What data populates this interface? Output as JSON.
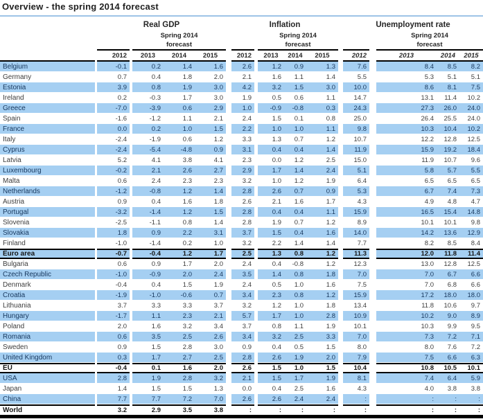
{
  "title": "Overview - the spring 2014 forecast",
  "colors": {
    "row_highlight": "#A5CFF2",
    "title_rule_blue": "#9DC3E6",
    "table_rule_black": "#000000"
  },
  "table": {
    "groups": [
      {
        "label": "Real GDP",
        "sub_line1": "Spring 2014",
        "sub_line2": "forecast",
        "years": [
          "2012",
          "2013",
          "2014",
          "2015"
        ],
        "italic_years": false
      },
      {
        "label": "Inflation",
        "sub_line1": "Spring 2014",
        "sub_line2": "forecast",
        "years": [
          "2012",
          "2013",
          "2014",
          "2015"
        ],
        "italic_years": false
      },
      {
        "label": "Unemployment rate",
        "sub_line1": "Spring 2014",
        "sub_line2": "forecast",
        "years": [
          "2012",
          "2013",
          "2014",
          "2015"
        ],
        "italic_years": true
      }
    ],
    "rows": [
      {
        "name": "Belgium",
        "gdp": [
          "-0.1",
          "0.2",
          "1.4",
          "1.6"
        ],
        "inflation": [
          "2.6",
          "1.2",
          "0.9",
          "1.3"
        ],
        "unemployment": [
          "7.6",
          "8.4",
          "8.5",
          "8.2"
        ]
      },
      {
        "name": "Germany",
        "gdp": [
          "0.7",
          "0.4",
          "1.8",
          "2.0"
        ],
        "inflation": [
          "2.1",
          "1.6",
          "1.1",
          "1.4"
        ],
        "unemployment": [
          "5.5",
          "5.3",
          "5.1",
          "5.1"
        ]
      },
      {
        "name": "Estonia",
        "gdp": [
          "3.9",
          "0.8",
          "1.9",
          "3.0"
        ],
        "inflation": [
          "4.2",
          "3.2",
          "1.5",
          "3.0"
        ],
        "unemployment": [
          "10.0",
          "8.6",
          "8.1",
          "7.5"
        ]
      },
      {
        "name": "Ireland",
        "gdp": [
          "0.2",
          "-0.3",
          "1.7",
          "3.0"
        ],
        "inflation": [
          "1.9",
          "0.5",
          "0.6",
          "1.1"
        ],
        "unemployment": [
          "14.7",
          "13.1",
          "11.4",
          "10.2"
        ]
      },
      {
        "name": "Greece",
        "gdp": [
          "-7.0",
          "-3.9",
          "0.6",
          "2.9"
        ],
        "inflation": [
          "1.0",
          "-0.9",
          "-0.8",
          "0.3"
        ],
        "unemployment": [
          "24.3",
          "27.3",
          "26.0",
          "24.0"
        ]
      },
      {
        "name": "Spain",
        "gdp": [
          "-1.6",
          "-1.2",
          "1.1",
          "2.1"
        ],
        "inflation": [
          "2.4",
          "1.5",
          "0.1",
          "0.8"
        ],
        "unemployment": [
          "25.0",
          "26.4",
          "25.5",
          "24.0"
        ]
      },
      {
        "name": "France",
        "gdp": [
          "0.0",
          "0.2",
          "1.0",
          "1.5"
        ],
        "inflation": [
          "2.2",
          "1.0",
          "1.0",
          "1.1"
        ],
        "unemployment": [
          "9.8",
          "10.3",
          "10.4",
          "10.2"
        ]
      },
      {
        "name": "Italy",
        "gdp": [
          "-2.4",
          "-1.9",
          "0.6",
          "1.2"
        ],
        "inflation": [
          "3.3",
          "1.3",
          "0.7",
          "1.2"
        ],
        "unemployment": [
          "10.7",
          "12.2",
          "12.8",
          "12.5"
        ]
      },
      {
        "name": "Cyprus",
        "gdp": [
          "-2.4",
          "-5.4",
          "-4.8",
          "0.9"
        ],
        "inflation": [
          "3.1",
          "0.4",
          "0.4",
          "1.4"
        ],
        "unemployment": [
          "11.9",
          "15.9",
          "19.2",
          "18.4"
        ]
      },
      {
        "name": "Latvia",
        "gdp": [
          "5.2",
          "4.1",
          "3.8",
          "4.1"
        ],
        "inflation": [
          "2.3",
          "0.0",
          "1.2",
          "2.5"
        ],
        "unemployment": [
          "15.0",
          "11.9",
          "10.7",
          "9.6"
        ]
      },
      {
        "name": "Luxembourg",
        "gdp": [
          "-0.2",
          "2.1",
          "2.6",
          "2.7"
        ],
        "inflation": [
          "2.9",
          "1.7",
          "1.4",
          "2.4"
        ],
        "unemployment": [
          "5.1",
          "5.8",
          "5.7",
          "5.5"
        ]
      },
      {
        "name": "Malta",
        "gdp": [
          "0.6",
          "2.4",
          "2.3",
          "2.3"
        ],
        "inflation": [
          "3.2",
          "1.0",
          "1.2",
          "1.9"
        ],
        "unemployment": [
          "6.4",
          "6.5",
          "6.5",
          "6.5"
        ]
      },
      {
        "name": "Netherlands",
        "gdp": [
          "-1.2",
          "-0.8",
          "1.2",
          "1.4"
        ],
        "inflation": [
          "2.8",
          "2.6",
          "0.7",
          "0.9"
        ],
        "unemployment": [
          "5.3",
          "6.7",
          "7.4",
          "7.3"
        ]
      },
      {
        "name": "Austria",
        "gdp": [
          "0.9",
          "0.4",
          "1.6",
          "1.8"
        ],
        "inflation": [
          "2.6",
          "2.1",
          "1.6",
          "1.7"
        ],
        "unemployment": [
          "4.3",
          "4.9",
          "4.8",
          "4.7"
        ]
      },
      {
        "name": "Portugal",
        "gdp": [
          "-3.2",
          "-1.4",
          "1.2",
          "1.5"
        ],
        "inflation": [
          "2.8",
          "0.4",
          "0.4",
          "1.1"
        ],
        "unemployment": [
          "15.9",
          "16.5",
          "15.4",
          "14.8"
        ]
      },
      {
        "name": "Slovenia",
        "gdp": [
          "-2.5",
          "-1.1",
          "0.8",
          "1.4"
        ],
        "inflation": [
          "2.8",
          "1.9",
          "0.7",
          "1.2"
        ],
        "unemployment": [
          "8.9",
          "10.1",
          "10.1",
          "9.8"
        ]
      },
      {
        "name": "Slovakia",
        "gdp": [
          "1.8",
          "0.9",
          "2.2",
          "3.1"
        ],
        "inflation": [
          "3.7",
          "1.5",
          "0.4",
          "1.6"
        ],
        "unemployment": [
          "14.0",
          "14.2",
          "13.6",
          "12.9"
        ]
      },
      {
        "name": "Finland",
        "gdp": [
          "-1.0",
          "-1.4",
          "0.2",
          "1.0"
        ],
        "inflation": [
          "3.2",
          "2.2",
          "1.4",
          "1.4"
        ],
        "unemployment": [
          "7.7",
          "8.2",
          "8.5",
          "8.4"
        ]
      },
      {
        "name": "Euro area",
        "bold": true,
        "gdp": [
          "-0.7",
          "-0.4",
          "1.2",
          "1.7"
        ],
        "inflation": [
          "2.5",
          "1.3",
          "0.8",
          "1.2"
        ],
        "unemployment": [
          "11.3",
          "12.0",
          "11.8",
          "11.4"
        ]
      },
      {
        "name": "Bulgaria",
        "gdp": [
          "0.6",
          "0.9",
          "1.7",
          "2.0"
        ],
        "inflation": [
          "2.4",
          "0.4",
          "-0.8",
          "1.2"
        ],
        "unemployment": [
          "12.3",
          "13.0",
          "12.8",
          "12.5"
        ]
      },
      {
        "name": "Czech Republic",
        "gdp": [
          "-1.0",
          "-0.9",
          "2.0",
          "2.4"
        ],
        "inflation": [
          "3.5",
          "1.4",
          "0.8",
          "1.8"
        ],
        "unemployment": [
          "7.0",
          "7.0",
          "6.7",
          "6.6"
        ]
      },
      {
        "name": "Denmark",
        "gdp": [
          "-0.4",
          "0.4",
          "1.5",
          "1.9"
        ],
        "inflation": [
          "2.4",
          "0.5",
          "1.0",
          "1.6"
        ],
        "unemployment": [
          "7.5",
          "7.0",
          "6.8",
          "6.6"
        ]
      },
      {
        "name": "Croatia",
        "gdp": [
          "-1.9",
          "-1.0",
          "-0.6",
          "0.7"
        ],
        "inflation": [
          "3.4",
          "2.3",
          "0.8",
          "1.2"
        ],
        "unemployment": [
          "15.9",
          "17.2",
          "18.0",
          "18.0"
        ]
      },
      {
        "name": "Lithuania",
        "gdp": [
          "3.7",
          "3.3",
          "3.3",
          "3.7"
        ],
        "inflation": [
          "3.2",
          "1.2",
          "1.0",
          "1.8"
        ],
        "unemployment": [
          "13.4",
          "11.8",
          "10.6",
          "9.7"
        ]
      },
      {
        "name": "Hungary",
        "gdp": [
          "-1.7",
          "1.1",
          "2.3",
          "2.1"
        ],
        "inflation": [
          "5.7",
          "1.7",
          "1.0",
          "2.8"
        ],
        "unemployment": [
          "10.9",
          "10.2",
          "9.0",
          "8.9"
        ]
      },
      {
        "name": "Poland",
        "gdp": [
          "2.0",
          "1.6",
          "3.2",
          "3.4"
        ],
        "inflation": [
          "3.7",
          "0.8",
          "1.1",
          "1.9"
        ],
        "unemployment": [
          "10.1",
          "10.3",
          "9.9",
          "9.5"
        ]
      },
      {
        "name": "Romania",
        "gdp": [
          "0.6",
          "3.5",
          "2.5",
          "2.6"
        ],
        "inflation": [
          "3.4",
          "3.2",
          "2.5",
          "3.3"
        ],
        "unemployment": [
          "7.0",
          "7.3",
          "7.2",
          "7.1"
        ]
      },
      {
        "name": "Sweden",
        "gdp": [
          "0.9",
          "1.5",
          "2.8",
          "3.0"
        ],
        "inflation": [
          "0.9",
          "0.4",
          "0.5",
          "1.5"
        ],
        "unemployment": [
          "8.0",
          "8.0",
          "7.6",
          "7.2"
        ]
      },
      {
        "name": "United Kingdom",
        "gdp": [
          "0.3",
          "1.7",
          "2.7",
          "2.5"
        ],
        "inflation": [
          "2.8",
          "2.6",
          "1.9",
          "2.0"
        ],
        "unemployment": [
          "7.9",
          "7.5",
          "6.6",
          "6.3"
        ]
      },
      {
        "name": "EU",
        "bold": true,
        "gdp": [
          "-0.4",
          "0.1",
          "1.6",
          "2.0"
        ],
        "inflation": [
          "2.6",
          "1.5",
          "1.0",
          "1.5"
        ],
        "unemployment": [
          "10.4",
          "10.8",
          "10.5",
          "10.1"
        ]
      },
      {
        "name": "USA",
        "gdp": [
          "2.8",
          "1.9",
          "2.8",
          "3.2"
        ],
        "inflation": [
          "2.1",
          "1.5",
          "1.7",
          "1.9"
        ],
        "unemployment": [
          "8.1",
          "7.4",
          "6.4",
          "5.9"
        ]
      },
      {
        "name": "Japan",
        "gdp": [
          "1.4",
          "1.5",
          "1.5",
          "1.3"
        ],
        "inflation": [
          "0.0",
          "0.4",
          "2.5",
          "1.6"
        ],
        "unemployment": [
          "4.3",
          "4.0",
          "3.8",
          "3.8"
        ]
      },
      {
        "name": "China",
        "gdp": [
          "7.7",
          "7.7",
          "7.2",
          "7.0"
        ],
        "inflation": [
          "2.6",
          "2.6",
          "2.4",
          "2.4"
        ],
        "unemployment": [
          ":",
          ":",
          ":",
          ":"
        ]
      },
      {
        "name": "World",
        "bold": true,
        "gdp": [
          "3.2",
          "2.9",
          "3.5",
          "3.8"
        ],
        "inflation": [
          ":",
          ":",
          ":",
          ":"
        ],
        "unemployment": [
          ":",
          ":",
          ":",
          ":"
        ]
      }
    ]
  }
}
